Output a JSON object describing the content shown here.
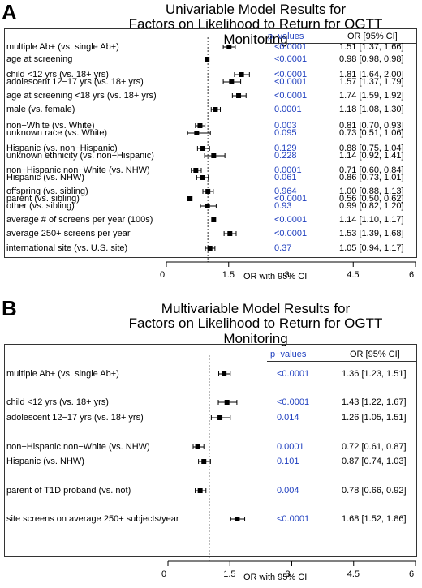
{
  "panels": [
    {
      "letter": "A",
      "title_line1": "Univariable Model Results for",
      "title_line2": "Factors on Likelihood to Return for OGTT Monitoring",
      "pvalue_header": "p−values",
      "or_header": "OR [95% CI]",
      "xlabel": "OR with 95% CI",
      "rows": [
        {
          "label": "multiple Ab+ (vs. single Ab+)",
          "p": "<0.0001",
          "or_text": "1.51 [1.37, 1.66]"
        },
        {
          "label": "age at screening",
          "p": "<0.0001",
          "or_text": "0.98 [0.98, 0.98]"
        },
        {
          "label": "child <12 yrs (vs. 18+ yrs)",
          "p": "<0.0001",
          "or_text": "1.81 [1.64, 2.00]"
        },
        {
          "label": "adolescent 12−17 yrs (vs. 18+ yrs)",
          "p": "<0.0001",
          "or_text": "1.57 [1.37, 1.79]"
        },
        {
          "label": "age at screening <18 yrs (vs. 18+ yrs)",
          "p": "<0.0001",
          "or_text": "1.74 [1.59, 1.92]"
        },
        {
          "label": "male (vs. female)",
          "p": "0.0001",
          "or_text": "1.18 [1.08, 1.30]"
        },
        {
          "label": "non−White (vs. White)",
          "p": "0.003",
          "or_text": "0.81 [0.70, 0.93]"
        },
        {
          "label": "unknown race (vs. White)",
          "p": "0.095",
          "or_text": "0.73 [0.51, 1.06]"
        },
        {
          "label": "Hispanic (vs. non−Hispanic)",
          "p": "0.129",
          "or_text": "0.88 [0.75, 1.04]"
        },
        {
          "label": "unknown ethnicity (vs. non−Hispanic)",
          "p": "0.228",
          "or_text": "1.14 [0.92, 1.41]"
        },
        {
          "label": "non−Hispanic non−White (vs. NHW)",
          "p": "0.0001",
          "or_text": "0.71 [0.60, 0.84]"
        },
        {
          "label": "Hispanic (vs. NHW)",
          "p": "0.061",
          "or_text": "0.86 [0.73, 1.01]"
        },
        {
          "label": "offspring (vs. sibling)",
          "p": "0.964",
          "or_text": "1.00 [0.88, 1.13]"
        },
        {
          "label": "parent (vs. sibling)",
          "p": "<0.0001",
          "or_text": "0.56 [0.50, 0.62]"
        },
        {
          "label": "other (vs. sibling)",
          "p": "0.93",
          "or_text": "0.99 [0.82, 1.20]"
        },
        {
          "label": "average # of screens per year (100s)",
          "p": "<0.0001",
          "or_text": "1.14 [1.10, 1.17]"
        },
        {
          "label": "average 250+ screens per year",
          "p": "<0.0001",
          "or_text": "1.53 [1.39, 1.68]"
        },
        {
          "label": "international site (vs. U.S. site)",
          "p": "0.37",
          "or_text": "1.05 [0.94, 1.17]"
        }
      ]
    },
    {
      "letter": "B",
      "title_line1": "Multivariable Model Results for",
      "title_line2": "Factors on Likelihood to Return for OGTT Monitoring",
      "pvalue_header": "p−values",
      "or_header": "OR [95% CI]",
      "xlabel": "OR with 95% CI",
      "rows": [
        {
          "label": "multiple Ab+ (vs. single Ab+)",
          "p": "<0.0001",
          "or_text": "1.36 [1.23, 1.51]"
        },
        {
          "label": "child <12 yrs (vs. 18+ yrs)",
          "p": "<0.0001",
          "or_text": "1.43 [1.22, 1.67]"
        },
        {
          "label": "adolescent 12−17 yrs (vs. 18+ yrs)",
          "p": "0.014",
          "or_text": "1.26 [1.05, 1.51]"
        },
        {
          "label": "non−Hispanic non−White (vs. NHW)",
          "p": "0.0001",
          "or_text": "0.72 [0.61, 0.87]"
        },
        {
          "label": "Hispanic (vs. NHW)",
          "p": "0.101",
          "or_text": "0.87 [0.74, 1.03]"
        },
        {
          "label": "parent of T1D proband (vs. not)",
          "p": "0.004",
          "or_text": "0.78 [0.66, 0.92]"
        },
        {
          "label": "site screens on average 250+ subjects/year",
          "p": "<0.0001",
          "or_text": "1.68 [1.52, 1.86]"
        }
      ]
    }
  ],
  "chart_data": [
    {
      "type": "forest",
      "title": "Univariable Model Results for Factors on Likelihood to Return for OGTT Monitoring",
      "xlabel": "OR with 95% CI",
      "xlim": [
        0,
        6
      ],
      "xticks": [
        "0",
        "1.5",
        "3",
        "4.5",
        "6"
      ],
      "reference_line": 1,
      "categories": [
        "multiple Ab+ (vs. single Ab+)",
        "age at screening",
        "child <12 yrs (vs. 18+ yrs)",
        "adolescent 12−17 yrs (vs. 18+ yrs)",
        "age at screening <18 yrs (vs. 18+ yrs)",
        "male (vs. female)",
        "non−White (vs. White)",
        "unknown race (vs. White)",
        "Hispanic (vs. non−Hispanic)",
        "unknown ethnicity (vs. non−Hispanic)",
        "non−Hispanic non−White (vs. NHW)",
        "Hispanic (vs. NHW)",
        "offspring (vs. sibling)",
        "parent (vs. sibling)",
        "other (vs. sibling)",
        "average # of screens per year (100s)",
        "average 250+ screens per year",
        "international site (vs. U.S. site)"
      ],
      "or": [
        1.51,
        0.98,
        1.81,
        1.57,
        1.74,
        1.18,
        0.81,
        0.73,
        0.88,
        1.14,
        0.71,
        0.86,
        1.0,
        0.56,
        0.99,
        1.14,
        1.53,
        1.05
      ],
      "ci_low": [
        1.37,
        0.98,
        1.64,
        1.37,
        1.59,
        1.08,
        0.7,
        0.51,
        0.75,
        0.92,
        0.6,
        0.73,
        0.88,
        0.5,
        0.82,
        1.1,
        1.39,
        0.94
      ],
      "ci_high": [
        1.66,
        0.98,
        2.0,
        1.79,
        1.92,
        1.3,
        0.93,
        1.06,
        1.04,
        1.41,
        0.84,
        1.01,
        1.13,
        0.62,
        1.2,
        1.17,
        1.68,
        1.17
      ],
      "p_values": [
        "<0.0001",
        "<0.0001",
        "<0.0001",
        "<0.0001",
        "<0.0001",
        "0.0001",
        "0.003",
        "0.095",
        "0.129",
        "0.228",
        "0.0001",
        "0.061",
        "0.964",
        "<0.0001",
        "0.93",
        "<0.0001",
        "<0.0001",
        "0.37"
      ]
    },
    {
      "type": "forest",
      "title": "Multivariable Model Results for Factors on Likelihood to Return for OGTT Monitoring",
      "xlabel": "OR with 95% CI",
      "xlim": [
        0,
        6
      ],
      "xticks": [
        "0",
        "1.5",
        "3",
        "4.5",
        "6"
      ],
      "reference_line": 1,
      "categories": [
        "multiple Ab+ (vs. single Ab+)",
        "child <12 yrs (vs. 18+ yrs)",
        "adolescent 12−17 yrs (vs. 18+ yrs)",
        "non−Hispanic non−White (vs. NHW)",
        "Hispanic (vs. NHW)",
        "parent of T1D proband (vs. not)",
        "site screens on average 250+ subjects/year"
      ],
      "or": [
        1.36,
        1.43,
        1.26,
        0.72,
        0.87,
        0.78,
        1.68
      ],
      "ci_low": [
        1.23,
        1.22,
        1.05,
        0.61,
        0.74,
        0.66,
        1.52
      ],
      "ci_high": [
        1.51,
        1.67,
        1.51,
        0.87,
        1.03,
        0.92,
        1.86
      ],
      "p_values": [
        "<0.0001",
        "<0.0001",
        "0.014",
        "0.0001",
        "0.101",
        "0.004",
        "<0.0001"
      ]
    }
  ]
}
